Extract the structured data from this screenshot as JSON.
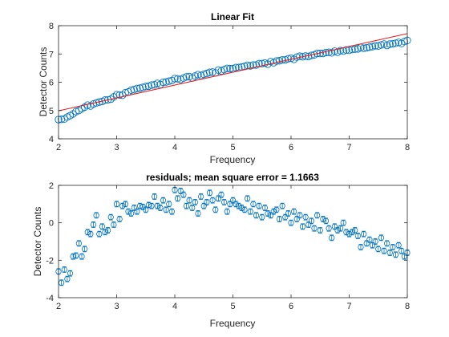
{
  "colors": {
    "data": "#0072BD",
    "fit": "#D95319",
    "fit_line": "#e8201f",
    "axis": "#262626",
    "background": "#ffffff"
  },
  "chart_data": [
    {
      "type": "scatter",
      "title": "Linear Fit",
      "xlabel": "Frequency",
      "ylabel": "Detector Counts",
      "xlim": [
        2,
        8
      ],
      "ylim": [
        4,
        8
      ],
      "xticks": [
        "2",
        "3",
        "4",
        "5",
        "6",
        "7",
        "8"
      ],
      "yticks": [
        "4",
        "5",
        "6",
        "7",
        "8"
      ],
      "grid": false,
      "series": [
        {
          "marker": "circle",
          "x": [
            2.0,
            2.05,
            2.1,
            2.15,
            2.2,
            2.25,
            2.3,
            2.35,
            2.4,
            2.45,
            2.5,
            2.55,
            2.6,
            2.65,
            2.7,
            2.75,
            2.8,
            2.85,
            2.9,
            2.95,
            3.0,
            3.05,
            3.1,
            3.15,
            3.2,
            3.25,
            3.3,
            3.35,
            3.4,
            3.45,
            3.5,
            3.55,
            3.6,
            3.65,
            3.7,
            3.75,
            3.8,
            3.85,
            3.9,
            3.95,
            4.0,
            4.05,
            4.1,
            4.15,
            4.2,
            4.25,
            4.3,
            4.35,
            4.4,
            4.45,
            4.5,
            4.55,
            4.6,
            4.65,
            4.7,
            4.75,
            4.8,
            4.85,
            4.9,
            4.95,
            5.0,
            5.05,
            5.1,
            5.15,
            5.2,
            5.25,
            5.3,
            5.35,
            5.4,
            5.45,
            5.5,
            5.55,
            5.6,
            5.65,
            5.7,
            5.75,
            5.8,
            5.85,
            5.9,
            5.95,
            6.0,
            6.05,
            6.1,
            6.15,
            6.2,
            6.25,
            6.3,
            6.35,
            6.4,
            6.45,
            6.5,
            6.55,
            6.6,
            6.65,
            6.7,
            6.75,
            6.8,
            6.85,
            6.9,
            6.95,
            7.0,
            7.05,
            7.1,
            7.15,
            7.2,
            7.25,
            7.3,
            7.35,
            7.4,
            7.45,
            7.5,
            7.55,
            7.6,
            7.65,
            7.7,
            7.75,
            7.8,
            7.85,
            7.9,
            7.95,
            8.0
          ],
          "y": [
            4.68,
            4.69,
            4.7,
            4.77,
            4.82,
            4.88,
            4.96,
            5.0,
            5.06,
            5.12,
            5.19,
            5.16,
            5.23,
            5.27,
            5.3,
            5.32,
            5.37,
            5.38,
            5.4,
            5.48,
            5.56,
            5.55,
            5.54,
            5.63,
            5.66,
            5.72,
            5.74,
            5.78,
            5.79,
            5.82,
            5.85,
            5.86,
            5.9,
            5.91,
            5.96,
            5.92,
            6.0,
            6.01,
            6.04,
            6.06,
            6.13,
            6.12,
            6.1,
            6.15,
            6.19,
            6.2,
            6.15,
            6.22,
            6.27,
            6.24,
            6.28,
            6.31,
            6.35,
            6.36,
            6.33,
            6.43,
            6.4,
            6.45,
            6.49,
            6.48,
            6.48,
            6.52,
            6.52,
            6.54,
            6.56,
            6.6,
            6.58,
            6.61,
            6.61,
            6.66,
            6.66,
            6.68,
            6.64,
            6.73,
            6.69,
            6.75,
            6.76,
            6.79,
            6.79,
            6.83,
            6.85,
            6.81,
            6.89,
            6.92,
            6.9,
            6.93,
            6.91,
            6.95,
            6.97,
            7.02,
            7.02,
            7.02,
            7.05,
            7.06,
            7.04,
            7.1,
            7.06,
            7.12,
            7.1,
            7.14,
            7.13,
            7.16,
            7.17,
            7.18,
            7.23,
            7.2,
            7.22,
            7.24,
            7.26,
            7.29,
            7.28,
            7.32,
            7.35,
            7.3,
            7.35,
            7.36,
            7.38,
            7.41,
            7.37,
            7.44,
            7.48
          ]
        },
        {
          "type": "line",
          "x": [
            2,
            8
          ],
          "y": [
            4.99,
            7.72
          ]
        }
      ]
    },
    {
      "type": "scatter",
      "title": "residuals; mean square error = 1.1663",
      "xlabel": "Frequency",
      "ylabel": "Detector Counts",
      "xlim": [
        2,
        8
      ],
      "ylim": [
        -4,
        2
      ],
      "xticks": [
        "2",
        "3",
        "4",
        "5",
        "6",
        "7",
        "8"
      ],
      "yticks": [
        "-4",
        "-2",
        "0",
        "2"
      ],
      "grid": false,
      "error_bar_half_width": 0.15,
      "series": [
        {
          "marker": "circle",
          "x": [
            2.0,
            2.05,
            2.1,
            2.15,
            2.2,
            2.25,
            2.3,
            2.35,
            2.4,
            2.45,
            2.5,
            2.55,
            2.6,
            2.65,
            2.7,
            2.75,
            2.8,
            2.85,
            2.9,
            2.95,
            3.0,
            3.05,
            3.1,
            3.15,
            3.2,
            3.25,
            3.3,
            3.35,
            3.4,
            3.45,
            3.5,
            3.55,
            3.6,
            3.65,
            3.7,
            3.75,
            3.8,
            3.85,
            3.9,
            3.95,
            4.0,
            4.05,
            4.1,
            4.15,
            4.2,
            4.25,
            4.3,
            4.35,
            4.4,
            4.45,
            4.5,
            4.55,
            4.6,
            4.65,
            4.7,
            4.75,
            4.8,
            4.85,
            4.9,
            4.95,
            5.0,
            5.05,
            5.1,
            5.15,
            5.2,
            5.25,
            5.3,
            5.35,
            5.4,
            5.45,
            5.5,
            5.55,
            5.6,
            5.65,
            5.7,
            5.75,
            5.8,
            5.85,
            5.9,
            5.95,
            6.0,
            6.05,
            6.1,
            6.15,
            6.2,
            6.25,
            6.3,
            6.35,
            6.4,
            6.45,
            6.5,
            6.55,
            6.6,
            6.65,
            6.7,
            6.75,
            6.8,
            6.85,
            6.9,
            6.95,
            7.0,
            7.05,
            7.1,
            7.15,
            7.2,
            7.25,
            7.3,
            7.35,
            7.4,
            7.45,
            7.5,
            7.55,
            7.6,
            7.65,
            7.7,
            7.75,
            7.8,
            7.85,
            7.9,
            7.95,
            8.0
          ],
          "y": [
            -2.6,
            -3.2,
            -2.5,
            -3.0,
            -2.7,
            -1.8,
            -1.75,
            -1.1,
            -1.8,
            -1.4,
            -0.5,
            -0.6,
            -0.1,
            0.4,
            -0.6,
            -0.2,
            -0.5,
            -0.4,
            0.3,
            -0.1,
            1.0,
            0.2,
            0.9,
            1.0,
            0.6,
            0.5,
            0.8,
            0.6,
            0.9,
            0.85,
            0.7,
            0.95,
            0.9,
            1.4,
            0.9,
            0.8,
            1.2,
            0.7,
            1.0,
            0.6,
            1.75,
            1.3,
            1.7,
            1.5,
            0.9,
            1.2,
            0.8,
            1.1,
            0.5,
            1.4,
            0.9,
            1.1,
            1.6,
            1.2,
            0.7,
            1.3,
            1.5,
            1.1,
            0.6,
            1.0,
            1.2,
            1.0,
            0.9,
            0.8,
            0.7,
            1.3,
            0.6,
            1.0,
            0.4,
            0.9,
            0.3,
            0.8,
            0.5,
            0.4,
            0.6,
            0.7,
            0.2,
            0.9,
            0.3,
            0.5,
            0.0,
            0.6,
            0.2,
            0.4,
            -0.2,
            0.3,
            -0.1,
            0.1,
            -0.3,
            0.4,
            -0.4,
            0.2,
            0.1,
            -0.3,
            -0.8,
            -0.2,
            -0.4,
            -0.3,
            0.0,
            -0.5,
            -0.6,
            -0.5,
            -0.4,
            -0.7,
            -1.3,
            -0.6,
            -1.1,
            -0.9,
            -1.2,
            -1.0,
            -1.4,
            -0.8,
            -1.5,
            -1.1,
            -1.6,
            -1.3,
            -1.7,
            -1.2,
            -1.5,
            -1.8,
            -1.6
          ]
        }
      ]
    }
  ]
}
